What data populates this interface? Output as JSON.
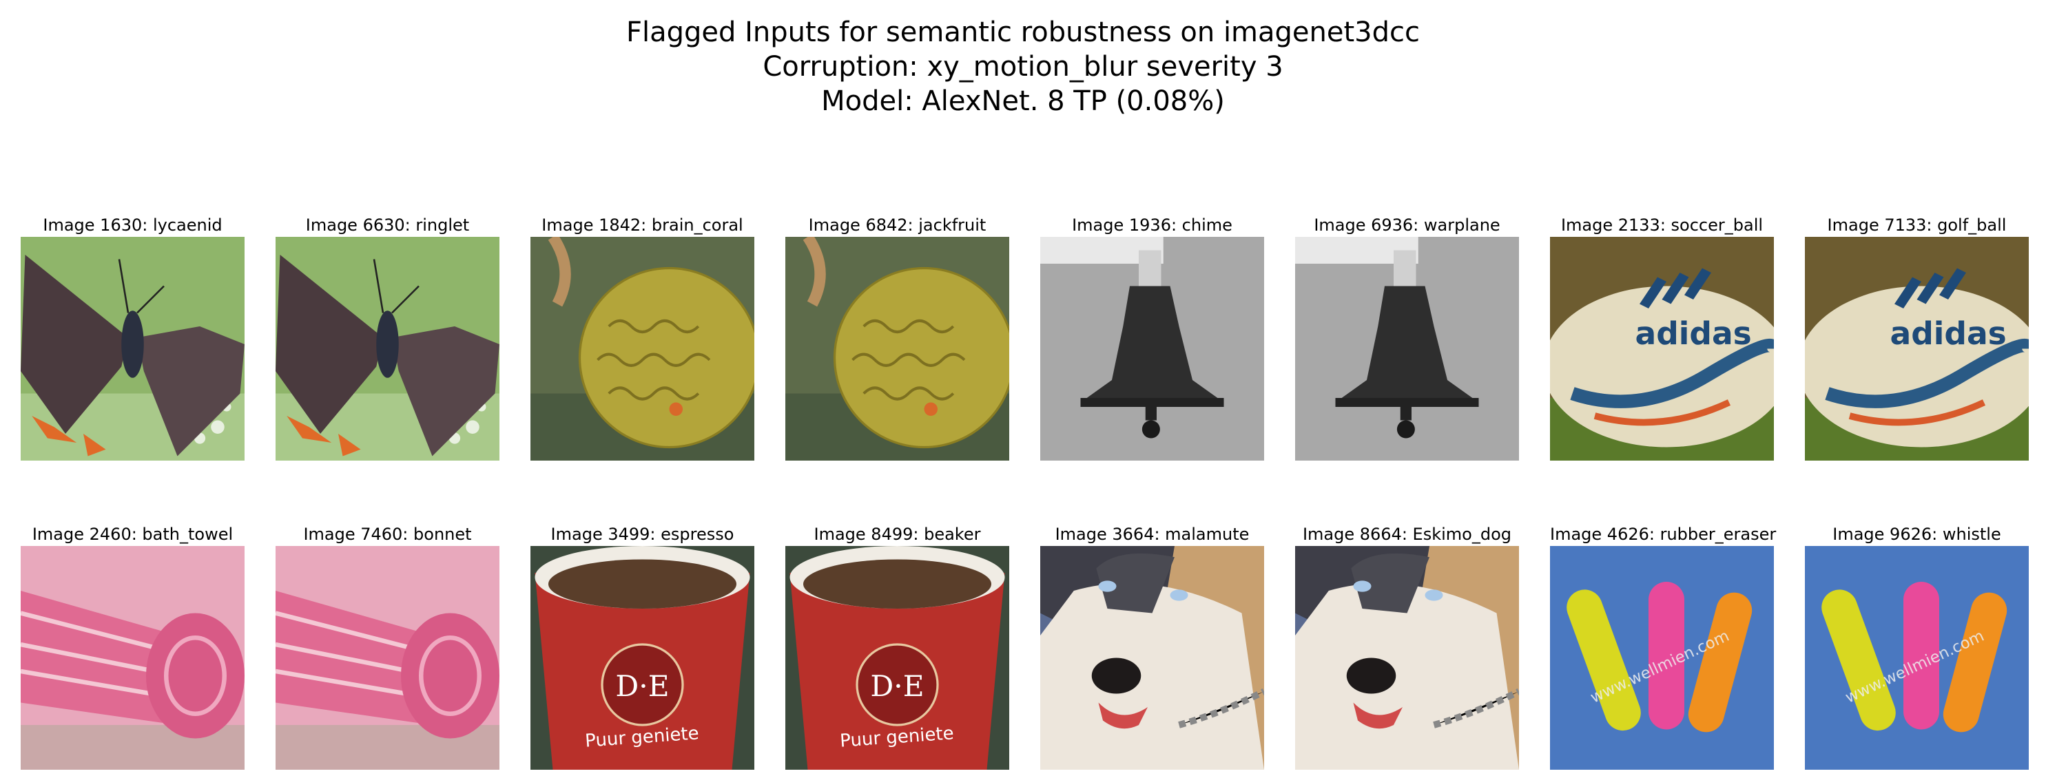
{
  "title": {
    "line1": "Flagged Inputs for semantic robustness on imagenet3dcc",
    "line2": "Corruption: xy_motion_blur severity 3",
    "line3": "Model: AlexNet. 8 TP (0.08%)"
  },
  "images": [
    {
      "caption": "Image 1630: lycaenid",
      "icon": "butterfly-icon"
    },
    {
      "caption": "Image 6630: ringlet",
      "icon": "butterfly-icon"
    },
    {
      "caption": "Image 1842: brain_coral",
      "icon": "coral-icon"
    },
    {
      "caption": "Image 6842: jackfruit",
      "icon": "coral-icon"
    },
    {
      "caption": "Image 1936: chime",
      "icon": "bell-icon"
    },
    {
      "caption": "Image 6936: warplane",
      "icon": "bell-icon"
    },
    {
      "caption": "Image 2133: soccer_ball",
      "icon": "rugby-ball-icon",
      "logo_text": "adidas"
    },
    {
      "caption": "Image 7133: golf_ball",
      "icon": "rugby-ball-icon",
      "logo_text": "adidas"
    },
    {
      "caption": "Image 2460: bath_towel",
      "icon": "towel-icon"
    },
    {
      "caption": "Image 7460: bonnet",
      "icon": "towel-icon"
    },
    {
      "caption": "Image 3499: espresso",
      "icon": "coffee-cup-icon",
      "logo_text": "D·E",
      "cup_text": "Puur geniete"
    },
    {
      "caption": "Image 8499: beaker",
      "icon": "coffee-cup-icon",
      "logo_text": "D·E",
      "cup_text": "Puur geniete"
    },
    {
      "caption": "Image 3664: malamute",
      "icon": "dog-icon"
    },
    {
      "caption": "Image 8664: Eskimo_dog",
      "icon": "dog-icon"
    },
    {
      "caption": "Image 4626: rubber_eraser",
      "icon": "bandage-icon",
      "watermark": "www.wellmien.com"
    },
    {
      "caption": "Image 9626: whistle",
      "icon": "bandage-icon",
      "watermark": "www.wellmien.com"
    }
  ]
}
